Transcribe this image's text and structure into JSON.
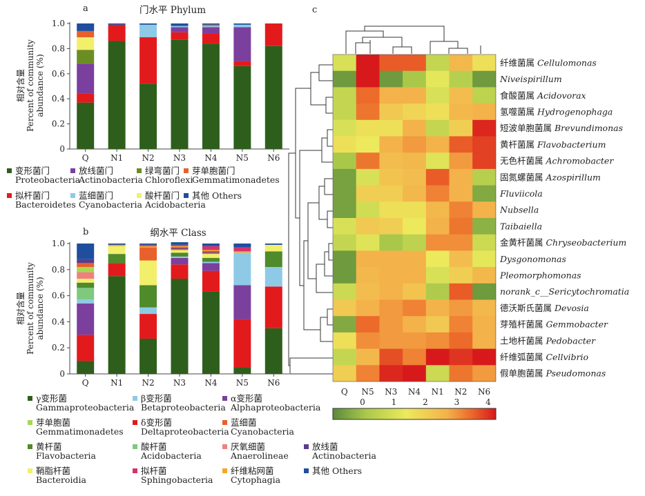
{
  "panels": {
    "a": {
      "letter": "a",
      "title": "门水平 Phylum"
    },
    "b": {
      "letter": "b",
      "title": "纲水平 Class"
    },
    "c": {
      "letter": "c"
    }
  },
  "ylabel_lines": [
    "相对含量",
    "Percent of community",
    "abundance (%)"
  ],
  "chart_data": [
    {
      "type": "bar",
      "stacked": true,
      "title": "门水平 Phylum",
      "ylabel": "相对含量 Percent of community abundance (%)",
      "ylim": [
        0,
        1
      ],
      "yticks": [
        "0",
        "0.2",
        "0.4",
        "0.6",
        "0.8",
        "1.0"
      ],
      "categories": [
        "Q",
        "N1",
        "N2",
        "N3",
        "N4",
        "N5",
        "N6"
      ],
      "series": [
        {
          "name": "变形菌门 Proteobacteria",
          "color": "#2e5e1c",
          "values": [
            0.37,
            0.86,
            0.52,
            0.87,
            0.84,
            0.66,
            0.82
          ]
        },
        {
          "name": "拟杆菌门 Bacteroidetes",
          "color": "#e31a1c",
          "values": [
            0.07,
            0.13,
            0.37,
            0.06,
            0.08,
            0.04,
            0.18
          ]
        },
        {
          "name": "放线菌门 Actinobacteria",
          "color": "#7b3f9e",
          "values": [
            0.24,
            0.0,
            0.0,
            0.04,
            0.05,
            0.27,
            0.0
          ]
        },
        {
          "name": "蓝细菌门 Cyanobacteria",
          "color": "#8ecae6",
          "values": [
            0.0,
            0.0,
            0.1,
            0.01,
            0.01,
            0.02,
            0.0
          ]
        },
        {
          "name": "绿弯菌门 Chloroflexi",
          "color": "#6b8e23",
          "values": [
            0.11,
            0.0,
            0.0,
            0.0,
            0.0,
            0.0,
            0.0
          ]
        },
        {
          "name": "酸杆菌门 Acidobacteria",
          "color": "#f2ef6b",
          "values": [
            0.1,
            0.0,
            0.0,
            0.0,
            0.0,
            0.0,
            0.0
          ]
        },
        {
          "name": "芽单胞菌门 Gemmatimonadetes",
          "color": "#e8602c",
          "values": [
            0.05,
            0.0,
            0.0,
            0.0,
            0.01,
            0.0,
            0.0
          ]
        },
        {
          "name": "其他 Others",
          "color": "#1f4e9e",
          "values": [
            0.06,
            0.01,
            0.01,
            0.02,
            0.01,
            0.01,
            0.0
          ]
        }
      ],
      "legend_rows": [
        [
          {
            "cn": "变形菌门",
            "en": "Proteobacteria",
            "color": "#2e5e1c"
          },
          {
            "cn": "放线菌门",
            "en": "Actinobacteria",
            "color": "#7b3f9e"
          },
          {
            "cn": "绿弯菌门",
            "en": "Chloroflexi",
            "color": "#6b8e23"
          },
          {
            "cn": "芽单胞菌门",
            "en": "Gemmatimonadetes",
            "color": "#e8602c"
          }
        ],
        [
          {
            "cn": "拟杆菌门",
            "en": "Bacteroidetes",
            "color": "#e31a1c"
          },
          {
            "cn": "蓝细菌门",
            "en": "Cyanobacteria",
            "color": "#8ecae6"
          },
          {
            "cn": "酸杆菌门",
            "en": "Acidobacteria",
            "color": "#f2ef6b"
          },
          {
            "cn": "其他 Others",
            "en": "",
            "color": "#1f4e9e"
          }
        ]
      ]
    },
    {
      "type": "bar",
      "stacked": true,
      "title": "纲水平 Class",
      "ylabel": "相对含量 Percent of community abundance (%)",
      "ylim": [
        0,
        1
      ],
      "yticks": [
        "0",
        "0.2",
        "0.4",
        "0.6",
        "0.8",
        "1.0"
      ],
      "categories": [
        "Q",
        "N1",
        "N2",
        "N3",
        "N4",
        "N5",
        "N6"
      ],
      "series": [
        {
          "name": "γ变形菌 Gammaproteobacteria",
          "color": "#2e5e1c",
          "values": [
            0.1,
            0.75,
            0.27,
            0.73,
            0.63,
            0.05,
            0.35
          ]
        },
        {
          "name": "δ变形菌 Deltaproteobacteria",
          "color": "#e31a1c",
          "values": [
            0.2,
            0.1,
            0.19,
            0.11,
            0.16,
            0.37,
            0.32
          ]
        },
        {
          "name": "α变形菌 Alphaproteobacteria",
          "color": "#7b3f9e",
          "values": [
            0.24,
            0.0,
            0.0,
            0.05,
            0.06,
            0.26,
            0.0
          ]
        },
        {
          "name": "β变形菌 Betaproteobacteria",
          "color": "#8ecae6",
          "values": [
            0.03,
            0.0,
            0.05,
            0.01,
            0.01,
            0.25,
            0.15
          ]
        },
        {
          "name": "酸杆菌 Acidobacteria",
          "color": "#7fc97f",
          "values": [
            0.09,
            0.0,
            0.0,
            0.0,
            0.0,
            0.0,
            0.0
          ]
        },
        {
          "name": "黄杆菌 Flavobacteria",
          "color": "#4f8a2b",
          "values": [
            0.04,
            0.07,
            0.17,
            0.03,
            0.03,
            0.0,
            0.12
          ]
        },
        {
          "name": "鞘脂杆菌 Bacteroidia",
          "color": "#f2ef6b",
          "values": [
            0.03,
            0.06,
            0.19,
            0.02,
            0.03,
            0.0,
            0.05
          ]
        },
        {
          "name": "厌氧细菌 Anaerolineae",
          "color": "#f08080",
          "values": [
            0.05,
            0.0,
            0.0,
            0.0,
            0.0,
            0.0,
            0.0
          ]
        },
        {
          "name": "芽单胞菌 Gemmatimonadetes",
          "color": "#a6d854",
          "values": [
            0.04,
            0.0,
            0.0,
            0.0,
            0.0,
            0.0,
            0.0
          ]
        },
        {
          "name": "蓝细菌 Cyanobacteria",
          "color": "#e8602c",
          "values": [
            0.03,
            0.0,
            0.1,
            0.01,
            0.01,
            0.0,
            0.0
          ]
        },
        {
          "name": "放线菌 Actinobacteria",
          "color": "#5a3d8a",
          "values": [
            0.03,
            0.0,
            0.0,
            0.01,
            0.01,
            0.0,
            0.0
          ]
        },
        {
          "name": "纤维粘网菌 Cytophagia",
          "color": "#f5a623",
          "values": [
            0.0,
            0.01,
            0.01,
            0.01,
            0.01,
            0.01,
            0.0
          ]
        },
        {
          "name": "拟杆菌 Sphingobacteria",
          "color": "#d6336c",
          "values": [
            0.0,
            0.0,
            0.01,
            0.01,
            0.03,
            0.03,
            0.0
          ]
        },
        {
          "name": "其他 Others",
          "color": "#1f4e9e",
          "values": [
            0.12,
            0.01,
            0.01,
            0.02,
            0.02,
            0.03,
            0.01
          ]
        }
      ],
      "legend_rows": [
        [
          {
            "cn": "γ变形菌",
            "en": "Gammaproteobacteria",
            "color": "#2e5e1c"
          },
          {
            "cn": "β变形菌",
            "en": "Betaproteobacteria",
            "color": "#8ecae6"
          },
          {
            "cn": "α变形菌",
            "en": "Alphaproteobacteria",
            "color": "#7b3f9e"
          }
        ],
        [
          {
            "cn": "芽单胞菌",
            "en": "Gemmatimonadetes",
            "color": "#a6d854"
          },
          {
            "cn": "δ变形菌",
            "en": "Deltaproteobacteria",
            "color": "#e31a1c"
          },
          {
            "cn": "蓝细菌",
            "en": "Cyanobacteria",
            "color": "#e8602c"
          }
        ],
        [
          {
            "cn": "黄杆菌",
            "en": "Flavobacteria",
            "color": "#4f8a2b"
          },
          {
            "cn": "酸杆菌",
            "en": "Acidobacteria",
            "color": "#7fc97f"
          },
          {
            "cn": "厌氧细菌",
            "en": "Anaerolineae",
            "color": "#f08080"
          },
          {
            "cn": "放线菌",
            "en": "Actinobacteria",
            "color": "#5a3d8a"
          }
        ],
        [
          {
            "cn": "鞘脂杆菌",
            "en": "Bacteroidia",
            "color": "#f2ef6b"
          },
          {
            "cn": "拟杆菌",
            "en": "Sphingobacteria",
            "color": "#d6336c"
          },
          {
            "cn": "纤维粘网菌",
            "en": "Cytophagia",
            "color": "#f5a623"
          },
          {
            "cn": "其他 Others",
            "en": "",
            "color": "#1f4e9e"
          }
        ]
      ]
    },
    {
      "type": "heatmap",
      "columns": [
        "Q",
        "N5",
        "N3",
        "N4",
        "N1",
        "N2",
        "N6"
      ],
      "rows": [
        {
          "cn": "纤维菌属",
          "genus": "Cellulomonas"
        },
        {
          "cn": "",
          "genus": "Niveispirillum"
        },
        {
          "cn": "食酸菌属",
          "genus": "Acidovorax"
        },
        {
          "cn": "氢噬菌属",
          "genus": "Hydrogenophaga"
        },
        {
          "cn": "短波单胞菌属",
          "genus": "Brevundimonas"
        },
        {
          "cn": "黄杆菌属",
          "genus": "Flavobacterium"
        },
        {
          "cn": "无色杆菌属",
          "genus": "Achromobacter"
        },
        {
          "cn": "固氮螺菌属",
          "genus": "Azospirillum"
        },
        {
          "cn": "",
          "genus": "Fluviicola"
        },
        {
          "cn": "",
          "genus": "Nubsella"
        },
        {
          "cn": "",
          "genus": "Taibaiella"
        },
        {
          "cn": "金黄杆菌属",
          "genus": "Chryseobacterium"
        },
        {
          "cn": "",
          "genus": "Dysgonomonas"
        },
        {
          "cn": "",
          "genus": "Pleomorphomonas"
        },
        {
          "cn": "",
          "genus": "norank_c__Sericytochromatia"
        },
        {
          "cn": "德沃斯氏菌属",
          "genus": "Devosia"
        },
        {
          "cn": "芽殖杆菌属",
          "genus": "Gemmobacter"
        },
        {
          "cn": "土地杆菌属",
          "genus": "Pedobacter"
        },
        {
          "cn": "纤维弧菌属",
          "genus": "Cellvibrio"
        },
        {
          "cn": "假单胞菌属",
          "genus": "Pseudomonas"
        }
      ],
      "values": [
        [
          1.5,
          4.0,
          3.5,
          3.5,
          1.2,
          2.7,
          2.0
        ],
        [
          0.2,
          4.0,
          0.2,
          0.8,
          1.7,
          1.0,
          0.2
        ],
        [
          1.2,
          3.4,
          2.8,
          2.8,
          1.5,
          2.6,
          1.1
        ],
        [
          1.2,
          3.3,
          2.4,
          2.2,
          2.0,
          2.7,
          2.8
        ],
        [
          1.5,
          2.0,
          2.0,
          2.8,
          1.2,
          2.3,
          3.9
        ],
        [
          2.0,
          1.8,
          2.8,
          3.0,
          2.8,
          3.5,
          3.7
        ],
        [
          0.8,
          3.3,
          2.6,
          2.7,
          1.6,
          3.0,
          3.7
        ],
        [
          0.3,
          1.5,
          2.5,
          2.6,
          3.5,
          2.8,
          1.0
        ],
        [
          0.3,
          2.3,
          2.3,
          2.7,
          3.2,
          2.8,
          0.4
        ],
        [
          0.3,
          1.4,
          2.0,
          2.0,
          2.7,
          3.2,
          2.8
        ],
        [
          1.5,
          2.4,
          2.3,
          1.8,
          2.8,
          3.3,
          0.5
        ],
        [
          1.2,
          1.6,
          0.8,
          1.1,
          3.1,
          3.1,
          1.3
        ],
        [
          0.2,
          2.8,
          2.8,
          2.8,
          1.8,
          2.6,
          1.7
        ],
        [
          0.2,
          2.7,
          2.8,
          2.8,
          1.5,
          2.3,
          2.7
        ],
        [
          1.3,
          2.6,
          2.8,
          2.5,
          0.9,
          3.5,
          0.2
        ],
        [
          2.4,
          2.8,
          3.0,
          3.2,
          2.8,
          3.0,
          2.7
        ],
        [
          0.4,
          3.4,
          3.0,
          2.8,
          2.4,
          3.2,
          2.8
        ],
        [
          2.0,
          3.1,
          3.0,
          3.0,
          3.1,
          3.4,
          2.8
        ],
        [
          1.2,
          2.7,
          3.6,
          3.2,
          4.0,
          3.8,
          4.0
        ],
        [
          2.3,
          3.2,
          3.9,
          4.0,
          1.3,
          3.3,
          3.0
        ]
      ],
      "colorbar": {
        "min": 0,
        "max": 4,
        "ticks": [
          "0",
          "1",
          "2",
          "3",
          "4"
        ],
        "colors": [
          "#5b8a3a",
          "#a9c84a",
          "#ecea5c",
          "#f4b24a",
          "#ec6a2a",
          "#d7191c"
        ]
      }
    }
  ]
}
